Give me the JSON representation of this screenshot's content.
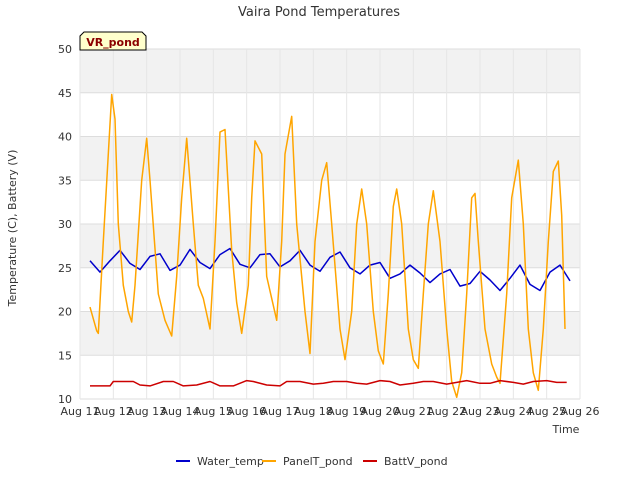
{
  "chart_data": {
    "type": "line",
    "title": "Vaira Pond Temperatures",
    "xlabel": "Time",
    "ylabel": "Temperature (C), Battery (V)",
    "badge": "VR_pond",
    "ylim": [
      10,
      50
    ],
    "yticks": [
      10,
      15,
      20,
      25,
      30,
      35,
      40,
      45,
      50
    ],
    "xlim": [
      0,
      15
    ],
    "xticks": [
      0,
      1,
      2,
      3,
      4,
      5,
      6,
      7,
      8,
      9,
      10,
      11,
      12,
      13,
      14,
      15
    ],
    "xtick_labels": [
      "Aug 11",
      "Aug 12",
      "Aug 13",
      "Aug 14",
      "Aug 15",
      "Aug 16",
      "Aug 17",
      "Aug 18",
      "Aug 19",
      "Aug 20",
      "Aug 21",
      "Aug 22",
      "Aug 23",
      "Aug 24",
      "Aug 25",
      "Aug 26"
    ],
    "grid": true,
    "legend_position": "bottom",
    "series": [
      {
        "name": "Water_temp",
        "color": "#0000cc",
        "x": [
          0.3,
          0.6,
          0.9,
          1.2,
          1.5,
          1.8,
          2.1,
          2.4,
          2.7,
          3.0,
          3.3,
          3.6,
          3.9,
          4.2,
          4.5,
          4.8,
          5.1,
          5.4,
          5.7,
          6.0,
          6.3,
          6.6,
          6.9,
          7.2,
          7.5,
          7.8,
          8.1,
          8.4,
          8.7,
          9.0,
          9.3,
          9.6,
          9.9,
          10.2,
          10.5,
          10.8,
          11.1,
          11.4,
          11.7,
          12.0,
          12.3,
          12.6,
          12.9,
          13.2,
          13.5,
          13.8,
          14.1,
          14.4,
          14.7
        ],
        "y": [
          25.8,
          24.5,
          25.8,
          27.0,
          25.5,
          24.8,
          26.3,
          26.6,
          24.7,
          25.3,
          27.1,
          25.6,
          24.9,
          26.5,
          27.2,
          25.4,
          25.0,
          26.5,
          26.6,
          25.1,
          25.8,
          27.0,
          25.3,
          24.6,
          26.2,
          26.8,
          25.0,
          24.3,
          25.3,
          25.6,
          23.8,
          24.3,
          25.3,
          24.4,
          23.3,
          24.3,
          24.8,
          22.9,
          23.2,
          24.6,
          23.6,
          22.4,
          23.8,
          25.3,
          23.1,
          22.4,
          24.5,
          25.3,
          23.5
        ]
      },
      {
        "name": "PanelT_pond",
        "color": "#ffa500",
        "x": [
          0.3,
          0.5,
          0.55,
          0.7,
          0.85,
          0.95,
          1.05,
          1.15,
          1.3,
          1.45,
          1.55,
          1.65,
          1.85,
          2.0,
          2.1,
          2.35,
          2.55,
          2.75,
          2.9,
          3.05,
          3.2,
          3.4,
          3.55,
          3.7,
          3.9,
          4.05,
          4.2,
          4.35,
          4.55,
          4.7,
          4.85,
          5.05,
          5.15,
          5.25,
          5.45,
          5.6,
          5.75,
          5.9,
          6.05,
          6.15,
          6.35,
          6.5,
          6.75,
          6.9,
          7.05,
          7.25,
          7.4,
          7.55,
          7.8,
          7.95,
          8.15,
          8.3,
          8.45,
          8.6,
          8.8,
          8.95,
          9.1,
          9.25,
          9.4,
          9.5,
          9.65,
          9.85,
          10.0,
          10.15,
          10.3,
          10.45,
          10.6,
          10.8,
          11.0,
          11.15,
          11.3,
          11.45,
          11.6,
          11.75,
          11.85,
          11.95,
          12.15,
          12.35,
          12.5,
          12.6,
          12.8,
          12.95,
          13.15,
          13.3,
          13.45,
          13.6,
          13.75,
          13.9,
          14.05,
          14.2,
          14.35,
          14.45,
          14.55
        ],
        "y": [
          20.5,
          17.8,
          17.5,
          28.0,
          38.0,
          44.8,
          42.0,
          30.0,
          23.0,
          20.0,
          18.8,
          23.0,
          35.0,
          39.8,
          35.0,
          22.0,
          19.0,
          17.2,
          24.0,
          33.0,
          39.8,
          30.0,
          23.0,
          21.5,
          18.0,
          28.0,
          40.5,
          40.8,
          27.0,
          21.0,
          17.5,
          23.0,
          33.0,
          39.5,
          38.0,
          24.0,
          21.5,
          19.0,
          28.0,
          38.0,
          42.3,
          30.0,
          20.0,
          15.2,
          28.0,
          35.0,
          37.0,
          30.0,
          18.0,
          14.5,
          20.0,
          30.0,
          34.0,
          30.0,
          20.0,
          15.5,
          14.0,
          22.0,
          32.0,
          34.0,
          30.0,
          18.0,
          14.5,
          13.5,
          22.0,
          30.0,
          33.8,
          28.0,
          18.0,
          12.0,
          10.2,
          13.0,
          22.0,
          33.0,
          33.5,
          28.0,
          18.0,
          14.0,
          12.5,
          11.8,
          22.0,
          33.0,
          37.3,
          30.0,
          18.0,
          13.0,
          11.0,
          18.0,
          28.0,
          36.0,
          37.2,
          31.0,
          18.0
        ]
      },
      {
        "name": "BattV_pond",
        "color": "#cc0000",
        "x": [
          0.3,
          0.9,
          1.0,
          1.6,
          1.8,
          2.1,
          2.5,
          2.8,
          3.1,
          3.5,
          3.9,
          4.2,
          4.6,
          5.0,
          5.2,
          5.6,
          6.0,
          6.2,
          6.6,
          7.0,
          7.3,
          7.6,
          8.0,
          8.3,
          8.6,
          9.0,
          9.3,
          9.6,
          10.0,
          10.3,
          10.6,
          11.0,
          11.3,
          11.6,
          12.0,
          12.3,
          12.6,
          13.0,
          13.3,
          13.6,
          14.0,
          14.3,
          14.6
        ],
        "y": [
          11.5,
          11.5,
          12.0,
          12.0,
          11.6,
          11.5,
          12.0,
          12.0,
          11.5,
          11.6,
          12.0,
          11.5,
          11.5,
          12.1,
          12.0,
          11.6,
          11.5,
          12.0,
          12.0,
          11.7,
          11.8,
          12.0,
          12.0,
          11.8,
          11.7,
          12.1,
          12.0,
          11.6,
          11.8,
          12.0,
          12.0,
          11.7,
          11.9,
          12.1,
          11.8,
          11.8,
          12.1,
          11.9,
          11.7,
          12.0,
          12.1,
          11.9,
          11.9
        ]
      }
    ]
  }
}
